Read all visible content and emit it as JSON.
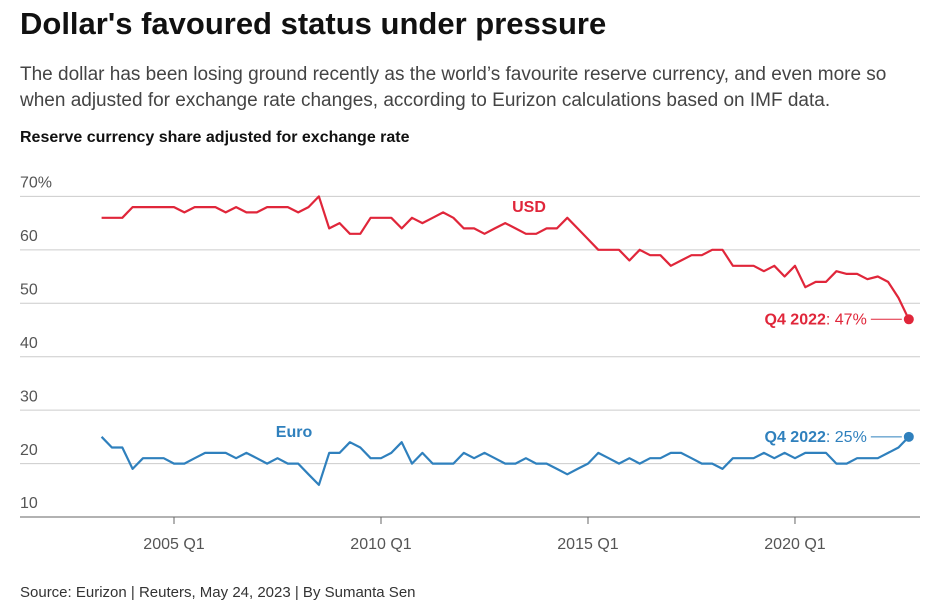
{
  "title": "Dollar's favoured status under pressure",
  "subtitle": "The dollar has been losing ground recently as the world’s favourite reserve currency, and even more so when adjusted for exchange rate changes, according to Eurizon calculations based on IMF data.",
  "source": "Source: Eurizon | Reuters, May 24, 2023 | By Sumanta Sen",
  "chart_data": {
    "type": "line",
    "title": "Reserve currency share adjusted for exchange rate",
    "x": [
      2003.25,
      2003.5,
      2003.75,
      2004,
      2004.25,
      2004.5,
      2004.75,
      2005,
      2005.25,
      2005.5,
      2005.75,
      2006,
      2006.25,
      2006.5,
      2006.75,
      2007,
      2007.25,
      2007.5,
      2007.75,
      2008,
      2008.25,
      2008.5,
      2008.75,
      2009,
      2009.25,
      2009.5,
      2009.75,
      2010,
      2010.25,
      2010.5,
      2010.75,
      2011,
      2011.25,
      2011.5,
      2011.75,
      2012,
      2012.25,
      2012.5,
      2012.75,
      2013,
      2013.25,
      2013.5,
      2013.75,
      2014,
      2014.25,
      2014.5,
      2014.75,
      2015,
      2015.25,
      2015.5,
      2015.75,
      2016,
      2016.25,
      2016.5,
      2016.75,
      2017,
      2017.25,
      2017.5,
      2017.75,
      2018,
      2018.25,
      2018.5,
      2018.75,
      2019,
      2019.25,
      2019.5,
      2019.75,
      2020,
      2020.25,
      2020.5,
      2020.75,
      2021,
      2021.25,
      2021.5,
      2021.75,
      2022,
      2022.25,
      2022.5,
      2022.75
    ],
    "series": [
      {
        "name": "USD",
        "color": "#e0263a",
        "values": [
          66,
          66,
          66,
          68,
          68,
          68,
          68,
          68,
          67,
          68,
          68,
          68,
          67,
          68,
          67,
          67,
          68,
          68,
          68,
          67,
          68,
          70,
          64,
          65,
          63,
          63,
          66,
          66,
          66,
          64,
          66,
          65,
          66,
          67,
          66,
          64,
          64,
          63,
          64,
          65,
          64,
          63,
          63,
          64,
          64,
          66,
          64,
          62,
          60,
          60,
          60,
          58,
          60,
          59,
          59,
          57,
          58,
          59,
          59,
          60,
          60,
          57,
          57,
          57,
          56,
          57,
          55,
          57,
          53,
          54,
          54,
          56,
          55.5,
          55.5,
          54.5,
          55,
          54,
          51,
          47
        ],
        "end_label": {
          "period": "Q4 2022",
          "text": ": 47%"
        }
      },
      {
        "name": "Euro",
        "color": "#2f80bd",
        "values": [
          25,
          23,
          23,
          19,
          21,
          21,
          21,
          20,
          20,
          21,
          22,
          22,
          22,
          21,
          22,
          21,
          20,
          21,
          20,
          20,
          18,
          16,
          22,
          22,
          24,
          23,
          21,
          21,
          22,
          24,
          20,
          22,
          20,
          20,
          20,
          22,
          21,
          22,
          21,
          20,
          20,
          21,
          20,
          20,
          19,
          18,
          19,
          20,
          22,
          21,
          20,
          21,
          20,
          21,
          21,
          22,
          22,
          21,
          20,
          20,
          19,
          21,
          21,
          21,
          22,
          21,
          22,
          21,
          22,
          22,
          22,
          20,
          20,
          21,
          21,
          21,
          22,
          23,
          25
        ],
        "end_label": {
          "period": "Q4 2022",
          "text": ": 25%"
        }
      }
    ],
    "xlim": [
      2001.28,
      2023.02
    ],
    "xticks": [
      {
        "value": 2005,
        "label": "2005 Q1"
      },
      {
        "value": 2010,
        "label": "2010 Q1"
      },
      {
        "value": 2015,
        "label": "2015 Q1"
      },
      {
        "value": 2020,
        "label": "2020 Q1"
      }
    ],
    "ylim": [
      10,
      74
    ],
    "yticks": [
      10,
      20,
      30,
      40,
      50,
      {
        "value": 60,
        "label": "60"
      },
      {
        "value": 70,
        "label": "70%"
      }
    ],
    "grid": true
  }
}
